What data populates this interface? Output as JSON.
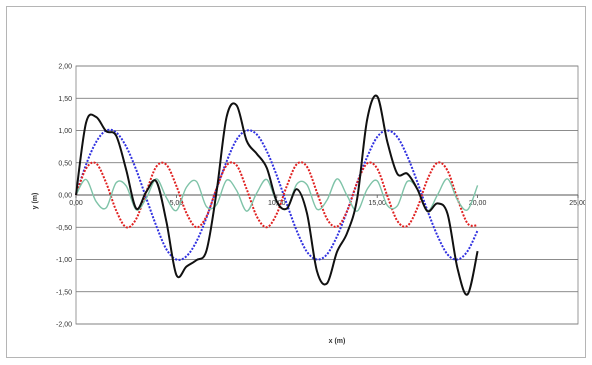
{
  "chart_data": {
    "type": "line",
    "title": "",
    "xlabel": "x (m)",
    "ylabel": "y (m)",
    "xlim": [
      0,
      25
    ],
    "ylim": [
      -2,
      2
    ],
    "x_ticks": [
      0,
      5,
      10,
      15,
      20,
      25
    ],
    "y_ticks": [
      -2,
      -1.5,
      -1,
      -0.5,
      0,
      0.5,
      1,
      1.5,
      2
    ],
    "x_tick_labels": [
      "0,00",
      "5,00",
      "10,00",
      "15,00",
      "20,00",
      "25,00"
    ],
    "y_tick_labels": [
      "-2,00",
      "-1,50",
      "-1,00",
      "-0,50",
      "0,00",
      "0,50",
      "1,00",
      "1,50",
      "2,00"
    ],
    "grid": "horizontal",
    "legend": "none",
    "series": [
      {
        "color": "#3030e0",
        "style": "dashed",
        "x": [
          0,
          0.5,
          1,
          1.5,
          2,
          2.5,
          3,
          3.5,
          4,
          4.5,
          5,
          5.5,
          6,
          6.5,
          7,
          7.5,
          8,
          8.5,
          9,
          9.5,
          10,
          10.5,
          11,
          11.5,
          12,
          12.5,
          13,
          13.5,
          14,
          14.5,
          15,
          15.5,
          16,
          16.5,
          17,
          17.5,
          18,
          18.5,
          19,
          19.5,
          20
        ],
        "values": [
          0,
          0.47,
          0.82,
          1.0,
          0.97,
          0.75,
          0.39,
          -0.05,
          -0.48,
          -0.84,
          -1.0,
          -0.95,
          -0.72,
          -0.35,
          0.1,
          0.52,
          0.86,
          1.0,
          0.94,
          0.68,
          0.3,
          -0.14,
          -0.56,
          -0.88,
          -1.0,
          -0.92,
          -0.64,
          -0.25,
          0.19,
          0.59,
          0.9,
          1.0,
          0.9,
          0.6,
          0.2,
          -0.24,
          -0.63,
          -0.92,
          -1.0,
          -0.87,
          -0.55
        ]
      },
      {
        "color": "#e02020",
        "style": "dashed",
        "x": [
          0,
          0.5,
          1,
          1.5,
          2,
          2.5,
          3,
          3.5,
          4,
          4.5,
          5,
          5.5,
          6,
          6.5,
          7,
          7.5,
          8,
          8.5,
          9,
          9.5,
          10,
          10.5,
          11,
          11.5,
          12,
          12.5,
          13,
          13.5,
          14,
          14.5,
          15,
          15.5,
          16,
          16.5,
          17,
          17.5,
          18,
          18.5,
          19,
          19.5,
          20
        ],
        "values": [
          0,
          0.41,
          0.49,
          0.19,
          -0.24,
          -0.5,
          -0.37,
          0.05,
          0.44,
          0.47,
          0.14,
          -0.28,
          -0.5,
          -0.33,
          0.1,
          0.46,
          0.46,
          0.09,
          -0.33,
          -0.5,
          -0.29,
          0.14,
          0.48,
          0.44,
          0.04,
          -0.37,
          -0.49,
          -0.25,
          0.19,
          0.49,
          0.41,
          -0.01,
          -0.4,
          -0.48,
          -0.2,
          0.24,
          0.5,
          0.38,
          -0.06,
          -0.44,
          -0.47
        ]
      },
      {
        "color": "#7fc3a8",
        "style": "solid",
        "x": [
          0,
          0.5,
          1,
          1.5,
          2,
          2.5,
          3,
          3.5,
          4,
          4.5,
          5,
          5.5,
          6,
          6.5,
          7,
          7.5,
          8,
          8.5,
          9,
          9.5,
          10,
          10.5,
          11,
          11.5,
          12,
          12.5,
          13,
          13.5,
          14,
          14.5,
          15,
          15.5,
          16,
          16.5,
          17,
          17.5,
          18,
          18.5,
          19,
          19.5,
          20
        ],
        "values": [
          0,
          0.24,
          -0.1,
          -0.2,
          0.19,
          0.14,
          -0.23,
          -0.05,
          0.25,
          -0.04,
          -0.24,
          0.12,
          0.21,
          -0.18,
          -0.15,
          0.23,
          0.07,
          -0.25,
          0.03,
          0.24,
          -0.11,
          -0.21,
          0.17,
          0.16,
          -0.22,
          -0.08,
          0.25,
          -0.01,
          -0.25,
          0.09,
          0.22,
          -0.16,
          -0.17,
          0.21,
          0.09,
          -0.25,
          0.0,
          0.25,
          -0.08,
          -0.23,
          0.15
        ]
      },
      {
        "color": "#111111",
        "style": "solid",
        "x": [
          0,
          0.5,
          1,
          1.5,
          2,
          2.5,
          3,
          3.5,
          4,
          4.5,
          5,
          5.5,
          6,
          6.5,
          7,
          7.5,
          8,
          8.5,
          9,
          9.5,
          10,
          10.5,
          11,
          11.5,
          12,
          12.5,
          13,
          13.5,
          14,
          14.5,
          15,
          15.5,
          16,
          16.5,
          17,
          17.5,
          18,
          18.5,
          19,
          19.5,
          20
        ],
        "values": [
          0,
          1.12,
          1.21,
          0.99,
          0.92,
          0.39,
          -0.21,
          0.05,
          0.21,
          -0.41,
          -1.24,
          -1.11,
          -1.01,
          -0.86,
          0.05,
          1.21,
          1.39,
          0.84,
          0.64,
          0.42,
          -0.1,
          -0.21,
          0.09,
          -0.28,
          -1.18,
          -1.37,
          -0.88,
          -0.59,
          -0.06,
          1.17,
          1.53,
          0.83,
          0.33,
          0.33,
          0.09,
          -0.25,
          -0.13,
          -0.29,
          -1.14,
          -1.54,
          -0.87
        ]
      }
    ]
  }
}
